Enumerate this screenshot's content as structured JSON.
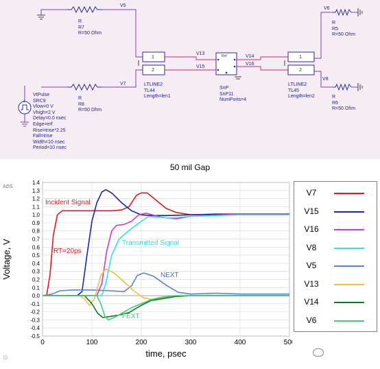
{
  "schematic": {
    "components": [
      {
        "id": "r7",
        "lines": [
          "R",
          "R7",
          "R=50 Ohm"
        ]
      },
      {
        "id": "r8",
        "lines": [
          "R",
          "R8",
          "R=50 Ohm"
        ]
      },
      {
        "id": "r5",
        "lines": [
          "R",
          "R5",
          "R=50 Ohm"
        ]
      },
      {
        "id": "r6",
        "lines": [
          "R",
          "R6",
          "R=50 Ohm"
        ]
      },
      {
        "id": "tl44",
        "lines": [
          "LTLINE2",
          "TL44",
          "Length=len1"
        ]
      },
      {
        "id": "tl45",
        "lines": [
          "LTLINE2",
          "TL45",
          "Length=len2"
        ]
      },
      {
        "id": "snp",
        "lines": [
          "SnP",
          "SnP11",
          "NumPorts=4"
        ]
      },
      {
        "id": "src",
        "lines": [
          "VtPulse",
          "SRC9",
          "Vlow=0 V",
          "Vhigh=2 V",
          "Delay=0.0 nsec",
          "Edge=erf",
          "Rise=trise*2.25",
          "Fall=trise",
          "Width=10 nsec",
          "Period=10 nsec"
        ]
      }
    ],
    "nodes": {
      "v5": "V5",
      "v7": "V7",
      "v13": "V13",
      "v15": "V15",
      "v14": "V14",
      "v16": "V16",
      "v6": "V6",
      "v8": "V8"
    },
    "pins": {
      "p1": "1",
      "p2": "2",
      "ref": "Ref"
    }
  },
  "gap_caption": "50 mil Gap",
  "chart_data": {
    "type": "line",
    "tool_tag": "ADS",
    "xlabel": "time, psec",
    "ylabel": "Voltage, V",
    "xlim": [
      0,
      500
    ],
    "ylim": [
      -0.5,
      1.4
    ],
    "x_ticks": [
      "0",
      "100",
      "200",
      "300",
      "400",
      "500"
    ],
    "y_ticks": [
      "-0.5",
      "-0.4",
      "-0.3",
      "-0.2",
      "-0.1",
      "0.0",
      "0.1",
      "0.2",
      "0.3",
      "0.4",
      "0.5",
      "0.6",
      "0.7",
      "0.8",
      "0.9",
      "1.0",
      "1.1",
      "1.2",
      "1.3",
      "1.4"
    ],
    "annotations": [
      {
        "text": "Incident Signal",
        "color": "#e8141b"
      },
      {
        "text": "RT=20ps",
        "color": "#e8141b"
      },
      {
        "text": "Transmitted Signal",
        "color": "#33d6d6"
      },
      {
        "text": "NEXT",
        "color": "#4a6fc6"
      },
      {
        "text": "FEXT",
        "color": "#3ccf7a"
      }
    ],
    "series": [
      {
        "name": "V7",
        "color": "#e8141b",
        "points": [
          [
            0,
            0
          ],
          [
            8,
            0
          ],
          [
            15,
            0.25
          ],
          [
            22,
            0.75
          ],
          [
            30,
            1.0
          ],
          [
            40,
            1.05
          ],
          [
            90,
            1.05
          ],
          [
            140,
            1.05
          ],
          [
            160,
            1.06
          ],
          [
            175,
            1.1
          ],
          [
            190,
            1.24
          ],
          [
            200,
            1.27
          ],
          [
            212,
            1.27
          ],
          [
            230,
            1.18
          ],
          [
            250,
            1.08
          ],
          [
            270,
            1.03
          ],
          [
            300,
            1.0
          ],
          [
            350,
            1.01
          ],
          [
            400,
            1.01
          ],
          [
            500,
            1.01
          ]
        ]
      },
      {
        "name": "V15",
        "color": "#1c21b0",
        "points": [
          [
            0,
            0
          ],
          [
            70,
            0
          ],
          [
            80,
            0.05
          ],
          [
            90,
            0.5
          ],
          [
            100,
            0.92
          ],
          [
            110,
            1.15
          ],
          [
            120,
            1.28
          ],
          [
            128,
            1.31
          ],
          [
            140,
            1.27
          ],
          [
            160,
            1.15
          ],
          [
            180,
            1.05
          ],
          [
            200,
            1.0
          ],
          [
            220,
            0.99
          ],
          [
            250,
            0.99
          ],
          [
            300,
            1.0
          ],
          [
            400,
            1.01
          ],
          [
            500,
            1.01
          ]
        ]
      },
      {
        "name": "V16",
        "color": "#cc33dd",
        "points": [
          [
            0,
            0
          ],
          [
            110,
            0
          ],
          [
            120,
            0.15
          ],
          [
            130,
            0.55
          ],
          [
            140,
            0.8
          ],
          [
            150,
            0.87
          ],
          [
            165,
            0.88
          ],
          [
            180,
            0.92
          ],
          [
            195,
            1.0
          ],
          [
            210,
            1.02
          ],
          [
            240,
            0.97
          ],
          [
            270,
            0.95
          ],
          [
            300,
            0.98
          ],
          [
            400,
            1.01
          ],
          [
            500,
            1.01
          ]
        ]
      },
      {
        "name": "V8",
        "color": "#33e0e0",
        "points": [
          [
            0,
            0
          ],
          [
            120,
            0
          ],
          [
            128,
            0.15
          ],
          [
            140,
            0.5
          ],
          [
            155,
            0.7
          ],
          [
            170,
            0.78
          ],
          [
            185,
            0.85
          ],
          [
            200,
            0.92
          ],
          [
            215,
            0.98
          ],
          [
            235,
            0.97
          ],
          [
            260,
            0.96
          ],
          [
            300,
            0.98
          ],
          [
            400,
            1.0
          ],
          [
            500,
            1.0
          ]
        ]
      },
      {
        "name": "V5",
        "color": "#5a7fd6",
        "points": [
          [
            0,
            0
          ],
          [
            20,
            0.02
          ],
          [
            35,
            0.06
          ],
          [
            60,
            0.07
          ],
          [
            100,
            0.07
          ],
          [
            140,
            0.06
          ],
          [
            165,
            0.05
          ],
          [
            180,
            0.12
          ],
          [
            192,
            0.25
          ],
          [
            205,
            0.28
          ],
          [
            225,
            0.24
          ],
          [
            250,
            0.13
          ],
          [
            275,
            0.04
          ],
          [
            300,
            0.02
          ],
          [
            350,
            0.03
          ],
          [
            400,
            0.02
          ],
          [
            500,
            0.02
          ]
        ]
      },
      {
        "name": "V13",
        "color": "#f2bf3a",
        "points": [
          [
            0,
            0
          ],
          [
            75,
            0
          ],
          [
            85,
            -0.04
          ],
          [
            95,
            -0.12
          ],
          [
            105,
            -0.04
          ],
          [
            118,
            0.25
          ],
          [
            128,
            0.33
          ],
          [
            145,
            0.28
          ],
          [
            165,
            0.17
          ],
          [
            185,
            0.06
          ],
          [
            205,
            -0.03
          ],
          [
            225,
            -0.05
          ],
          [
            250,
            -0.02
          ],
          [
            300,
            0.0
          ],
          [
            500,
            0.0
          ]
        ]
      },
      {
        "name": "V14",
        "color": "#0a7a1a",
        "points": [
          [
            0,
            0
          ],
          [
            85,
            0
          ],
          [
            100,
            -0.1
          ],
          [
            112,
            -0.22
          ],
          [
            122,
            -0.27
          ],
          [
            135,
            -0.26
          ],
          [
            155,
            -0.24
          ],
          [
            175,
            -0.21
          ],
          [
            200,
            -0.12
          ],
          [
            220,
            -0.06
          ],
          [
            240,
            -0.04
          ],
          [
            270,
            -0.01
          ],
          [
            300,
            0.0
          ],
          [
            500,
            0.0
          ]
        ]
      },
      {
        "name": "V6",
        "color": "#3ccf7a",
        "points": [
          [
            0,
            0
          ],
          [
            110,
            0
          ],
          [
            118,
            -0.1
          ],
          [
            126,
            -0.25
          ],
          [
            133,
            -0.3
          ],
          [
            145,
            -0.27
          ],
          [
            160,
            -0.22
          ],
          [
            180,
            -0.15
          ],
          [
            200,
            -0.1
          ],
          [
            220,
            -0.05
          ],
          [
            240,
            -0.02
          ],
          [
            270,
            0.0
          ],
          [
            500,
            0.0
          ]
        ]
      }
    ]
  }
}
